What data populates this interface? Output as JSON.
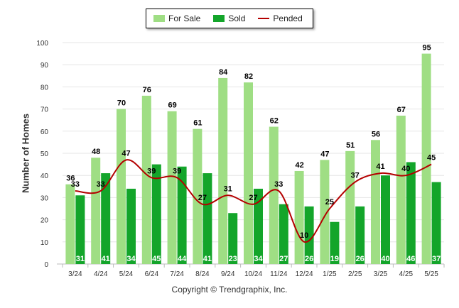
{
  "chart_data": {
    "type": "bar",
    "ylabel": "Number of Homes",
    "ylim": [
      0,
      100
    ],
    "yticks": [
      "0",
      "10",
      "20",
      "30",
      "40",
      "50",
      "60",
      "70",
      "80",
      "90",
      "100"
    ],
    "grid": true,
    "legend_position": "top-center",
    "categories": [
      "3/24",
      "4/24",
      "5/24",
      "6/24",
      "7/24",
      "8/24",
      "9/24",
      "10/24",
      "11/24",
      "12/24",
      "1/25",
      "2/25",
      "3/25",
      "4/25",
      "5/25"
    ],
    "series": [
      {
        "name": "For Sale",
        "type": "bar",
        "color": "#9fde84",
        "values": [
          36,
          48,
          70,
          76,
          69,
          61,
          84,
          82,
          62,
          42,
          47,
          51,
          56,
          67,
          95
        ]
      },
      {
        "name": "Sold",
        "type": "bar",
        "color": "#13a52a",
        "values": [
          31,
          41,
          34,
          45,
          44,
          41,
          23,
          34,
          27,
          26,
          19,
          26,
          40,
          46,
          37
        ]
      },
      {
        "name": "Pended",
        "type": "line",
        "color": "#b40000",
        "values": [
          33,
          33,
          47,
          39,
          39,
          27,
          31,
          27,
          33,
          10,
          25,
          37,
          41,
          40,
          45
        ]
      }
    ]
  },
  "legend": {
    "for_sale": "For Sale",
    "sold": "Sold",
    "pended": "Pended"
  },
  "footer": {
    "copyright": "Copyright © Trendgraphix, Inc."
  }
}
